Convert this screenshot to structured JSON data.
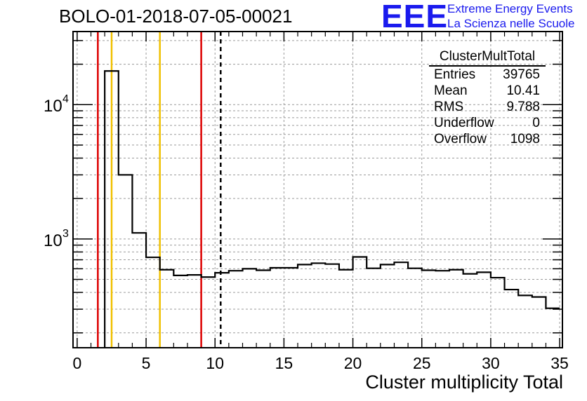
{
  "header": {
    "title": "BOLO-01-2018-07-05-00021",
    "logo_text": "EEE",
    "logo_line1": "Extreme Energy Events",
    "logo_line2": "La Scienza nelle Scuole"
  },
  "stats": {
    "name": "ClusterMultTotal",
    "rows": [
      {
        "label": "Entries",
        "value": "39765"
      },
      {
        "label": "Mean",
        "value": "10.41"
      },
      {
        "label": "RMS",
        "value": "9.788"
      },
      {
        "label": "Underflow",
        "value": "0"
      },
      {
        "label": "Overflow",
        "value": "1098"
      }
    ]
  },
  "chart_data": {
    "type": "histogram",
    "title": "BOLO-01-2018-07-05-00021",
    "xlabel": "Cluster multiplicity Total",
    "ylabel": "",
    "xlim": [
      -0.3,
      35.2
    ],
    "ylim": [
      155,
      35000
    ],
    "yscale": "log",
    "grid": true,
    "xticks": [
      0,
      5,
      10,
      15,
      20,
      25,
      30,
      35
    ],
    "yticks": [
      {
        "value": 1000,
        "label": "10",
        "exp": "3"
      },
      {
        "value": 10000,
        "label": "10",
        "exp": "4"
      }
    ],
    "bin_width": 1,
    "bins": [
      {
        "x": 2.5,
        "y": 17800
      },
      {
        "x": 3.5,
        "y": 3000
      },
      {
        "x": 4.5,
        "y": 1110
      },
      {
        "x": 5.5,
        "y": 730
      },
      {
        "x": 6.5,
        "y": 590
      },
      {
        "x": 7.5,
        "y": 535
      },
      {
        "x": 8.5,
        "y": 540
      },
      {
        "x": 9.5,
        "y": 520
      },
      {
        "x": 10.5,
        "y": 560
      },
      {
        "x": 11.5,
        "y": 580
      },
      {
        "x": 12.5,
        "y": 600
      },
      {
        "x": 13.5,
        "y": 585
      },
      {
        "x": 14.5,
        "y": 610
      },
      {
        "x": 15.5,
        "y": 610
      },
      {
        "x": 16.5,
        "y": 645
      },
      {
        "x": 17.5,
        "y": 660
      },
      {
        "x": 18.5,
        "y": 650
      },
      {
        "x": 19.5,
        "y": 590
      },
      {
        "x": 20.5,
        "y": 735
      },
      {
        "x": 21.5,
        "y": 605
      },
      {
        "x": 22.5,
        "y": 645
      },
      {
        "x": 23.5,
        "y": 670
      },
      {
        "x": 24.5,
        "y": 605
      },
      {
        "x": 25.5,
        "y": 585
      },
      {
        "x": 26.5,
        "y": 580
      },
      {
        "x": 27.5,
        "y": 590
      },
      {
        "x": 28.5,
        "y": 550
      },
      {
        "x": 29.5,
        "y": 565
      },
      {
        "x": 30.5,
        "y": 515
      },
      {
        "x": 31.5,
        "y": 420
      },
      {
        "x": 32.5,
        "y": 380
      },
      {
        "x": 33.5,
        "y": 370
      },
      {
        "x": 34.5,
        "y": 305
      }
    ],
    "vlines": [
      {
        "x": 1.5,
        "color": "#dd0000",
        "style": "solid"
      },
      {
        "x": 2.5,
        "color": "#f0c000",
        "style": "solid"
      },
      {
        "x": 6.0,
        "color": "#f0c000",
        "style": "solid"
      },
      {
        "x": 9.0,
        "color": "#dd0000",
        "style": "solid"
      },
      {
        "x": 10.41,
        "color": "#000000",
        "style": "dashed"
      }
    ]
  }
}
